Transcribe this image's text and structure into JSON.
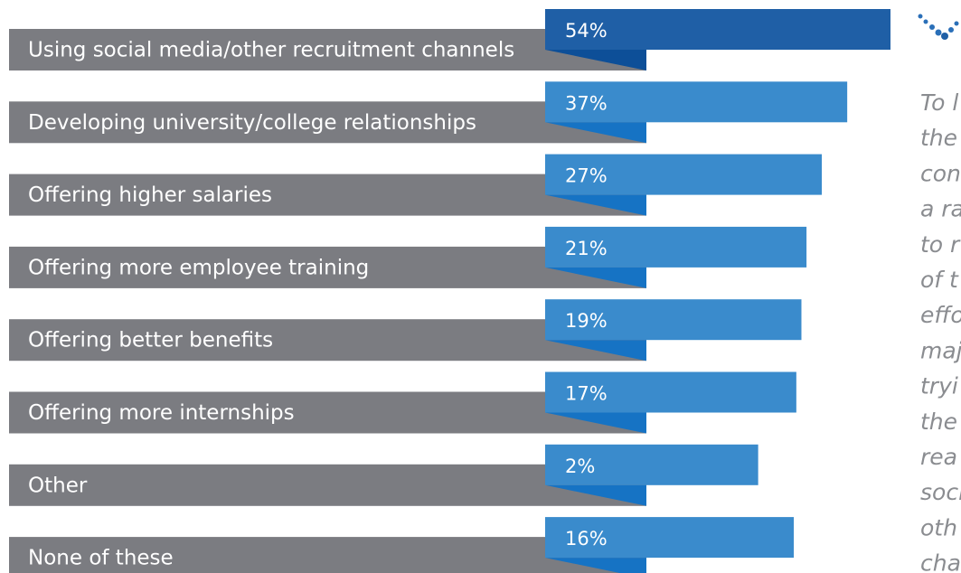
{
  "chart_data": {
    "type": "bar",
    "categories": [
      "Using social media/other recruitment channels",
      "Developing university/college relationships",
      "Offering higher salaries",
      "Offering more employee training",
      "Offering better benefits",
      "Offering more internships",
      "Other",
      "None of these"
    ],
    "values": [
      54,
      37,
      27,
      21,
      19,
      17,
      2,
      16
    ],
    "value_labels": [
      "54%",
      "37%",
      "27%",
      "21%",
      "19%",
      "17%",
      "2%",
      "16%"
    ],
    "colors": [
      "#1f5fa6",
      "#3a8bcc",
      "#3a8bcc",
      "#3a8bcc",
      "#3a8bcc",
      "#3a8bcc",
      "#3a8bcc",
      "#3a8bcc"
    ],
    "label_color": "#7b7c81",
    "annotation_lines": [
      "To l",
      "the",
      "con",
      "a ra",
      "to r",
      "of t",
      "effo",
      "maj",
      "tryi",
      "the",
      "rea",
      "soci",
      "oth",
      "cha"
    ]
  }
}
